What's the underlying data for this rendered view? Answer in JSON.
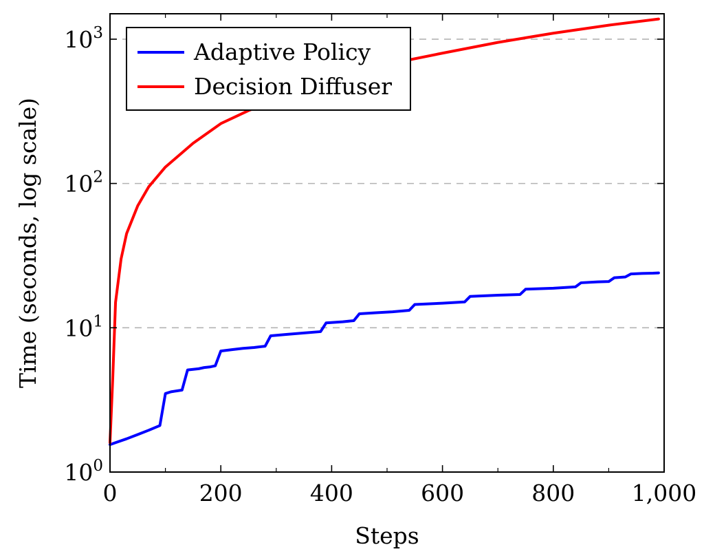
{
  "chart_data": {
    "type": "line",
    "title": "",
    "xlabel": "Steps",
    "ylabel": "Time (seconds, log scale)",
    "xlim": [
      0,
      1000
    ],
    "ylim": [
      1,
      1500
    ],
    "yscale": "log",
    "grid": "y-major-dashed",
    "legend": "top-left",
    "x_ticks": [
      {
        "value": 0,
        "label": "0"
      },
      {
        "value": 200,
        "label": "200"
      },
      {
        "value": 400,
        "label": "400"
      },
      {
        "value": 600,
        "label": "600"
      },
      {
        "value": 800,
        "label": "800"
      },
      {
        "value": 1000,
        "label": "1,000"
      }
    ],
    "y_ticks": [
      {
        "value": 1,
        "base": "10",
        "exp": "0"
      },
      {
        "value": 10,
        "base": "10",
        "exp": "1"
      },
      {
        "value": 100,
        "base": "10",
        "exp": "2"
      },
      {
        "value": 1000,
        "base": "10",
        "exp": "3"
      }
    ],
    "series": [
      {
        "name": "Adaptive Policy",
        "color": "#0000ff",
        "x": [
          0,
          10,
          30,
          50,
          70,
          90,
          100,
          110,
          120,
          130,
          140,
          150,
          160,
          170,
          180,
          190,
          200,
          220,
          240,
          260,
          280,
          290,
          320,
          350,
          380,
          390,
          420,
          440,
          450,
          480,
          510,
          540,
          550,
          600,
          640,
          650,
          700,
          740,
          750,
          800,
          840,
          850,
          880,
          900,
          910,
          930,
          940,
          960,
          980,
          990
        ],
        "y": [
          1.55,
          1.6,
          1.7,
          1.82,
          1.95,
          2.1,
          3.5,
          3.6,
          3.65,
          3.7,
          5.1,
          5.15,
          5.2,
          5.3,
          5.35,
          5.45,
          6.9,
          7.05,
          7.2,
          7.3,
          7.45,
          8.8,
          9.0,
          9.2,
          9.4,
          10.8,
          11.0,
          11.2,
          12.5,
          12.7,
          12.9,
          13.2,
          14.5,
          14.8,
          15.1,
          16.5,
          16.8,
          17.0,
          18.5,
          18.8,
          19.2,
          20.5,
          20.8,
          20.9,
          22.2,
          22.5,
          23.6,
          23.8,
          23.9,
          24.0
        ]
      },
      {
        "name": "Decision Diffuser",
        "color": "#ff0000",
        "x": [
          0,
          5,
          10,
          20,
          30,
          50,
          70,
          100,
          150,
          200,
          250,
          300,
          400,
          500,
          600,
          700,
          800,
          900,
          990
        ],
        "y": [
          1.6,
          4.5,
          15,
          30,
          45,
          70,
          95,
          130,
          190,
          260,
          320,
          380,
          520,
          670,
          800,
          950,
          1100,
          1250,
          1380
        ]
      }
    ]
  }
}
